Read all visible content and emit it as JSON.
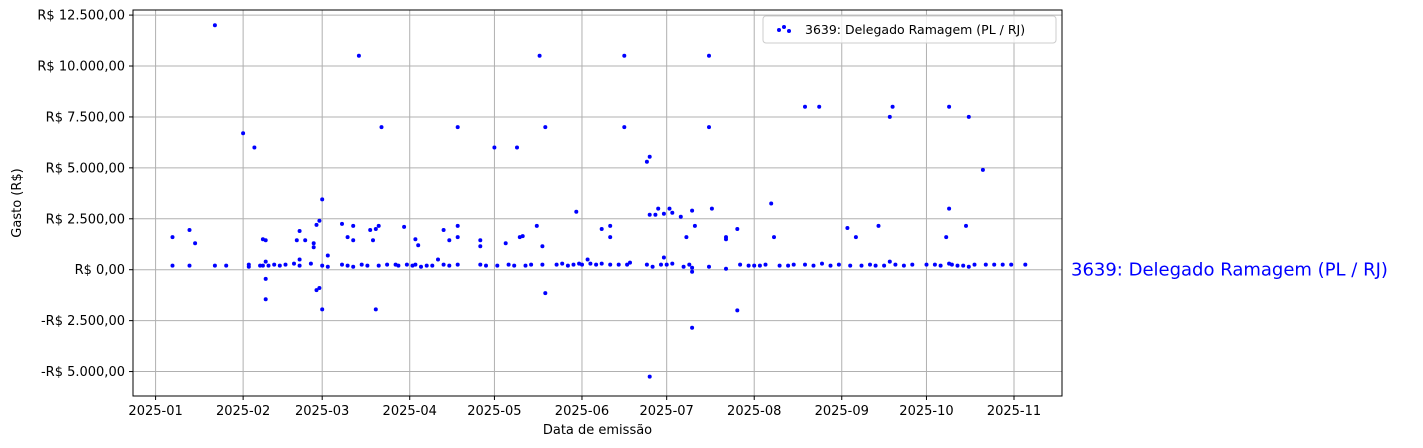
{
  "chart_data": {
    "type": "scatter",
    "xlabel": "Data de emissão",
    "ylabel": "Gasto (R$)",
    "xlim": [
      "2024-12-24",
      "2025-11-18"
    ],
    "ylim": [
      -6200,
      12750
    ],
    "x_ticks": [
      {
        "date": "2025-01-01",
        "label": "2025-01"
      },
      {
        "date": "2025-02-01",
        "label": "2025-02"
      },
      {
        "date": "2025-03-01",
        "label": "2025-03"
      },
      {
        "date": "2025-04-01",
        "label": "2025-04"
      },
      {
        "date": "2025-05-01",
        "label": "2025-05"
      },
      {
        "date": "2025-06-01",
        "label": "2025-06"
      },
      {
        "date": "2025-07-01",
        "label": "2025-07"
      },
      {
        "date": "2025-08-01",
        "label": "2025-08"
      },
      {
        "date": "2025-09-01",
        "label": "2025-09"
      },
      {
        "date": "2025-10-01",
        "label": "2025-10"
      },
      {
        "date": "2025-11-01",
        "label": "2025-11"
      }
    ],
    "y_ticks": [
      {
        "value": 12500,
        "label": "R$ 12.500,00"
      },
      {
        "value": 10000,
        "label": "R$ 10.000,00"
      },
      {
        "value": 7500,
        "label": "R$ 7.500,00"
      },
      {
        "value": 5000,
        "label": "R$ 5.000,00"
      },
      {
        "value": 2500,
        "label": "R$ 2.500,00"
      },
      {
        "value": 0,
        "label": "R$ 0,00"
      },
      {
        "value": -2500,
        "label": "-R$ 2.500,00"
      },
      {
        "value": -5000,
        "label": "-R$ 5.000,00"
      }
    ],
    "grid": true,
    "legend_position": "top-right",
    "series": [
      {
        "name": "3639: Delegado Ramagem (PL / RJ)",
        "color": "#0000ff",
        "points": [
          [
            "2025-01-07",
            1600
          ],
          [
            "2025-01-07",
            200
          ],
          [
            "2025-01-13",
            1950
          ],
          [
            "2025-01-13",
            200
          ],
          [
            "2025-01-15",
            1300
          ],
          [
            "2025-01-22",
            12000
          ],
          [
            "2025-01-22",
            200
          ],
          [
            "2025-01-26",
            200
          ],
          [
            "2025-02-01",
            6700
          ],
          [
            "2025-02-03",
            150
          ],
          [
            "2025-02-03",
            250
          ],
          [
            "2025-02-05",
            6000
          ],
          [
            "2025-02-07",
            200
          ],
          [
            "2025-02-08",
            1500
          ],
          [
            "2025-02-08",
            200
          ],
          [
            "2025-02-09",
            1450
          ],
          [
            "2025-02-09",
            400
          ],
          [
            "2025-02-09",
            -450
          ],
          [
            "2025-02-09",
            -1450
          ],
          [
            "2025-02-10",
            200
          ],
          [
            "2025-02-12",
            250
          ],
          [
            "2025-02-14",
            200
          ],
          [
            "2025-02-16",
            250
          ],
          [
            "2025-02-19",
            300
          ],
          [
            "2025-02-20",
            1450
          ],
          [
            "2025-02-21",
            1900
          ],
          [
            "2025-02-21",
            500
          ],
          [
            "2025-02-21",
            200
          ],
          [
            "2025-02-23",
            1450
          ],
          [
            "2025-02-25",
            300
          ],
          [
            "2025-02-26",
            1100
          ],
          [
            "2025-02-26",
            1300
          ],
          [
            "2025-02-27",
            2200
          ],
          [
            "2025-02-27",
            -1000
          ],
          [
            "2025-02-28",
            -900
          ],
          [
            "2025-02-28",
            2400
          ],
          [
            "2025-03-01",
            3450
          ],
          [
            "2025-03-01",
            -1950
          ],
          [
            "2025-03-01",
            200
          ],
          [
            "2025-03-03",
            700
          ],
          [
            "2025-03-03",
            150
          ],
          [
            "2025-03-08",
            2250
          ],
          [
            "2025-03-08",
            250
          ],
          [
            "2025-03-10",
            200
          ],
          [
            "2025-03-10",
            1600
          ],
          [
            "2025-03-12",
            1450
          ],
          [
            "2025-03-12",
            2150
          ],
          [
            "2025-03-12",
            150
          ],
          [
            "2025-03-14",
            10500
          ],
          [
            "2025-03-15",
            250
          ],
          [
            "2025-03-17",
            200
          ],
          [
            "2025-03-18",
            1950
          ],
          [
            "2025-03-19",
            1450
          ],
          [
            "2025-03-20",
            -1950
          ],
          [
            "2025-03-20",
            2000
          ],
          [
            "2025-03-21",
            2150
          ],
          [
            "2025-03-21",
            200
          ],
          [
            "2025-03-22",
            7000
          ],
          [
            "2025-03-24",
            250
          ],
          [
            "2025-03-27",
            250
          ],
          [
            "2025-03-28",
            200
          ],
          [
            "2025-03-30",
            2100
          ],
          [
            "2025-03-31",
            250
          ],
          [
            "2025-04-02",
            200
          ],
          [
            "2025-04-03",
            1500
          ],
          [
            "2025-04-03",
            250
          ],
          [
            "2025-04-04",
            1200
          ],
          [
            "2025-04-05",
            150
          ],
          [
            "2025-04-07",
            200
          ],
          [
            "2025-04-09",
            200
          ],
          [
            "2025-04-11",
            500
          ],
          [
            "2025-04-13",
            1950
          ],
          [
            "2025-04-13",
            250
          ],
          [
            "2025-04-15",
            1450
          ],
          [
            "2025-04-15",
            200
          ],
          [
            "2025-04-18",
            7000
          ],
          [
            "2025-04-18",
            1600
          ],
          [
            "2025-04-18",
            2150
          ],
          [
            "2025-04-18",
            250
          ],
          [
            "2025-04-26",
            1450
          ],
          [
            "2025-04-26",
            1150
          ],
          [
            "2025-04-26",
            250
          ],
          [
            "2025-04-28",
            200
          ],
          [
            "2025-05-01",
            6000
          ],
          [
            "2025-05-02",
            200
          ],
          [
            "2025-05-05",
            1300
          ],
          [
            "2025-05-06",
            250
          ],
          [
            "2025-05-08",
            200
          ],
          [
            "2025-05-09",
            6000
          ],
          [
            "2025-05-10",
            1600
          ],
          [
            "2025-05-11",
            1650
          ],
          [
            "2025-05-12",
            200
          ],
          [
            "2025-05-14",
            250
          ],
          [
            "2025-05-16",
            2150
          ],
          [
            "2025-05-17",
            10500
          ],
          [
            "2025-05-18",
            1150
          ],
          [
            "2025-05-18",
            250
          ],
          [
            "2025-05-19",
            7000
          ],
          [
            "2025-05-19",
            -1150
          ],
          [
            "2025-05-23",
            250
          ],
          [
            "2025-05-25",
            300
          ],
          [
            "2025-05-27",
            200
          ],
          [
            "2025-05-29",
            250
          ],
          [
            "2025-05-30",
            2850
          ],
          [
            "2025-05-31",
            300
          ],
          [
            "2025-06-01",
            250
          ],
          [
            "2025-06-03",
            500
          ],
          [
            "2025-06-04",
            300
          ],
          [
            "2025-06-06",
            250
          ],
          [
            "2025-06-08",
            2000
          ],
          [
            "2025-06-08",
            300
          ],
          [
            "2025-06-11",
            2150
          ],
          [
            "2025-06-11",
            1600
          ],
          [
            "2025-06-11",
            250
          ],
          [
            "2025-06-14",
            250
          ],
          [
            "2025-06-16",
            10500
          ],
          [
            "2025-06-16",
            7000
          ],
          [
            "2025-06-17",
            250
          ],
          [
            "2025-06-18",
            350
          ],
          [
            "2025-06-24",
            250
          ],
          [
            "2025-06-24",
            5300
          ],
          [
            "2025-06-25",
            5550
          ],
          [
            "2025-06-25",
            2700
          ],
          [
            "2025-06-25",
            -5250
          ],
          [
            "2025-06-26",
            150
          ],
          [
            "2025-06-27",
            2700
          ],
          [
            "2025-06-28",
            3000
          ],
          [
            "2025-06-29",
            250
          ],
          [
            "2025-06-30",
            2750
          ],
          [
            "2025-06-30",
            600
          ],
          [
            "2025-07-01",
            250
          ],
          [
            "2025-07-02",
            3000
          ],
          [
            "2025-07-03",
            2800
          ],
          [
            "2025-07-03",
            300
          ],
          [
            "2025-07-06",
            2600
          ],
          [
            "2025-07-07",
            150
          ],
          [
            "2025-07-08",
            1600
          ],
          [
            "2025-07-09",
            250
          ],
          [
            "2025-07-10",
            2900
          ],
          [
            "2025-07-10",
            100
          ],
          [
            "2025-07-10",
            -100
          ],
          [
            "2025-07-10",
            -2850
          ],
          [
            "2025-07-11",
            2150
          ],
          [
            "2025-07-16",
            10500
          ],
          [
            "2025-07-16",
            7000
          ],
          [
            "2025-07-16",
            150
          ],
          [
            "2025-07-17",
            3000
          ],
          [
            "2025-07-22",
            1600
          ],
          [
            "2025-07-22",
            1500
          ],
          [
            "2025-07-22",
            50
          ],
          [
            "2025-07-26",
            2000
          ],
          [
            "2025-07-26",
            -2000
          ],
          [
            "2025-07-27",
            250
          ],
          [
            "2025-07-30",
            200
          ],
          [
            "2025-08-01",
            200
          ],
          [
            "2025-08-03",
            200
          ],
          [
            "2025-08-05",
            250
          ],
          [
            "2025-08-07",
            3250
          ],
          [
            "2025-08-08",
            1600
          ],
          [
            "2025-08-10",
            200
          ],
          [
            "2025-08-13",
            200
          ],
          [
            "2025-08-15",
            250
          ],
          [
            "2025-08-19",
            8000
          ],
          [
            "2025-08-19",
            250
          ],
          [
            "2025-08-22",
            200
          ],
          [
            "2025-08-24",
            8000
          ],
          [
            "2025-08-25",
            300
          ],
          [
            "2025-08-28",
            200
          ],
          [
            "2025-08-31",
            250
          ],
          [
            "2025-09-03",
            2050
          ],
          [
            "2025-09-04",
            200
          ],
          [
            "2025-09-06",
            1600
          ],
          [
            "2025-09-08",
            200
          ],
          [
            "2025-09-11",
            250
          ],
          [
            "2025-09-13",
            200
          ],
          [
            "2025-09-14",
            2150
          ],
          [
            "2025-09-16",
            200
          ],
          [
            "2025-09-18",
            7500
          ],
          [
            "2025-09-18",
            400
          ],
          [
            "2025-09-19",
            8000
          ],
          [
            "2025-09-20",
            250
          ],
          [
            "2025-09-23",
            200
          ],
          [
            "2025-09-26",
            250
          ],
          [
            "2025-10-01",
            250
          ],
          [
            "2025-10-04",
            250
          ],
          [
            "2025-10-06",
            200
          ],
          [
            "2025-10-08",
            1600
          ],
          [
            "2025-10-09",
            8000
          ],
          [
            "2025-10-09",
            3000
          ],
          [
            "2025-10-09",
            300
          ],
          [
            "2025-10-10",
            250
          ],
          [
            "2025-10-12",
            200
          ],
          [
            "2025-10-14",
            200
          ],
          [
            "2025-10-15",
            2150
          ],
          [
            "2025-10-16",
            7500
          ],
          [
            "2025-10-16",
            150
          ],
          [
            "2025-10-18",
            250
          ],
          [
            "2025-10-21",
            4900
          ],
          [
            "2025-10-22",
            250
          ],
          [
            "2025-10-25",
            250
          ],
          [
            "2025-10-28",
            250
          ],
          [
            "2025-10-31",
            250
          ],
          [
            "2025-11-05",
            250
          ]
        ]
      }
    ],
    "annotations": [
      {
        "text": "3639: Delegado Ramagem (PL / RJ)",
        "color": "#0000ff",
        "y": 0
      }
    ]
  }
}
